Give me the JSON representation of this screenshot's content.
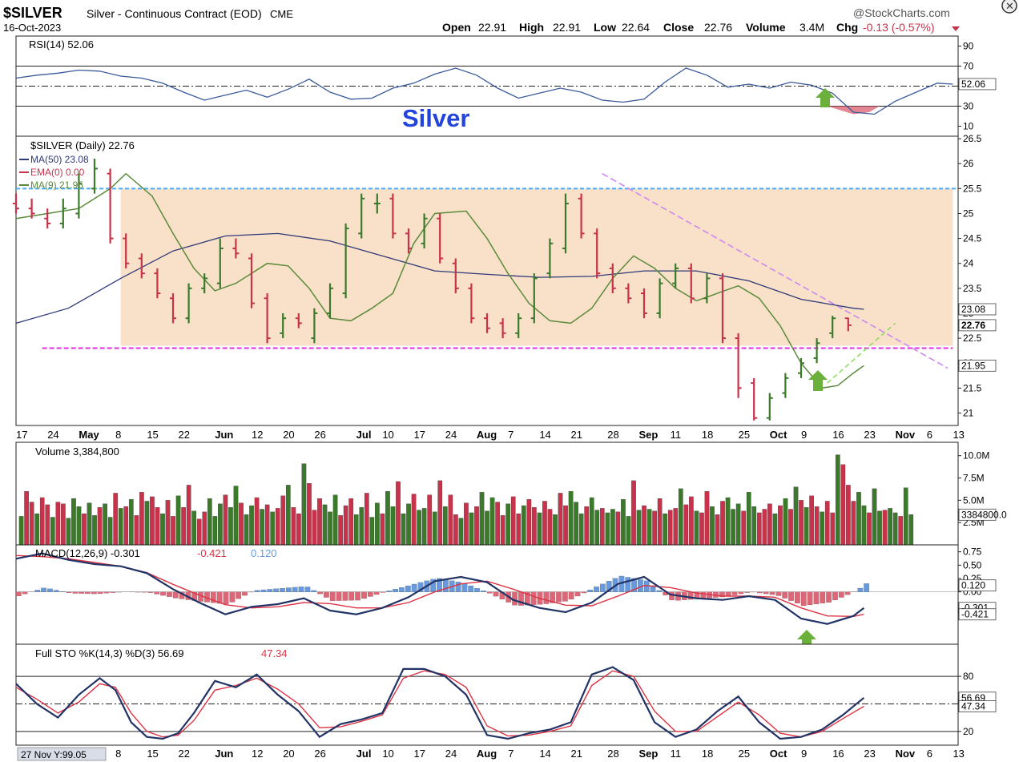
{
  "header": {
    "symbol": "$SILVER",
    "description": "Silver - Continuous Contract (EOD)",
    "exchange": "CME",
    "date": "16-Oct-2023",
    "brand": "@StockCharts.com",
    "ohlc": {
      "open_label": "Open",
      "open": "22.91",
      "high_label": "High",
      "high": "22.91",
      "low_label": "Low",
      "low": "22.64",
      "close_label": "Close",
      "close": "22.76",
      "volume_label": "Volume",
      "volume": "3.4M",
      "chg_label": "Chg",
      "chg": "-0.13 (-0.57%)"
    }
  },
  "annotation": {
    "text": "Silver",
    "color": "#2244dd"
  },
  "colors": {
    "up": "#3a7a2a",
    "down": "#c8324a",
    "ma50": "#303a78",
    "ma9": "#5a8a3a",
    "rsi_line": "#3a5a9a",
    "macd": "#223366",
    "signal": "#dd3344",
    "hist_pos": "#6699dd",
    "hist_neg": "#dd6677",
    "band": "#f8dcc0",
    "magenta": "#dd33dd",
    "resistance": "#55aaee",
    "trend": "#cc88ee",
    "green_trend": "#88dd55",
    "arrow": "#6ab03a",
    "frame": "#b8c8e0"
  },
  "chart_data": {
    "type": "line",
    "x_axis": {
      "ticks": [
        "17",
        "24",
        "May",
        "8",
        "15",
        "22",
        "Jun",
        "12",
        "20",
        "26",
        "Jul",
        "10",
        "17",
        "24",
        "Aug",
        "7",
        "14",
        "21",
        "28",
        "Sep",
        "11",
        "18",
        "25",
        "Oct",
        "9",
        "16",
        "23",
        "Nov",
        "6",
        "13"
      ],
      "bottom_ticks": [
        "8",
        "15",
        "22",
        "Jun",
        "12",
        "20",
        "26",
        "Jul",
        "10",
        "17",
        "24",
        "Aug",
        "7",
        "14",
        "21",
        "28",
        "Sep",
        "11",
        "18",
        "25",
        "Oct",
        "9",
        "16",
        "23",
        "Nov",
        "6",
        "13"
      ],
      "bottom_readout": "27 Nov Y:99.05"
    },
    "rsi": {
      "label": "RSI(14) 52.06",
      "ticks": [
        90,
        70,
        50,
        30,
        10
      ],
      "value_box": "52.06",
      "levels": [
        70,
        30
      ],
      "x": [
        0,
        4,
        8,
        12,
        16,
        20,
        24,
        28,
        32,
        36,
        40,
        44,
        48,
        52,
        56,
        60,
        64,
        68,
        72,
        76,
        80,
        84,
        88,
        92,
        96,
        100,
        104,
        108,
        112,
        116,
        120,
        124,
        128,
        132,
        136,
        140,
        144,
        148,
        152,
        156,
        160,
        164,
        168,
        172,
        176,
        179
      ],
      "values": [
        58,
        61,
        63,
        66,
        65,
        60,
        58,
        53,
        44,
        36,
        41,
        46,
        39,
        47,
        57,
        44,
        37,
        38,
        48,
        53,
        62,
        68,
        61,
        48,
        38,
        43,
        48,
        44,
        36,
        34,
        37,
        54,
        68,
        61,
        49,
        52,
        48,
        54,
        51,
        43,
        24,
        22,
        35,
        44,
        53,
        52
      ]
    },
    "price": {
      "label": "$SILVER (Daily) 22.76",
      "ylim": [
        20.75,
        26.55
      ],
      "ticks": [
        26.5,
        26.0,
        25.5,
        25.0,
        24.5,
        24.0,
        23.5,
        23.0,
        22.5,
        22.0,
        21.5,
        21.0
      ],
      "legend": [
        {
          "name": "MA(50) 23.08",
          "color": "#303a78"
        },
        {
          "name": "EMA(0) 0.00",
          "color": "#c8324a"
        },
        {
          "name": "MA(9) 21.95",
          "color": "#5a8a3a"
        }
      ],
      "value_boxes": [
        {
          "text": "23.08",
          "y": 23.08,
          "bold": false
        },
        {
          "text": "22.76",
          "y": 22.76,
          "bold": true
        },
        {
          "text": "21.95",
          "y": 21.95,
          "bold": false
        }
      ],
      "band": {
        "x0": 20,
        "x1": 179,
        "ylow": 22.35,
        "yhigh": 25.5
      },
      "resistance_line": 25.5,
      "support_line": {
        "x0": 5,
        "x1": 179,
        "y": 22.3
      },
      "trend_line": {
        "x0": 112,
        "y0": 25.8,
        "x1": 178,
        "y1": 21.9
      },
      "green_trend": {
        "x0": 155,
        "y0": 21.6,
        "x1": 168,
        "y1": 22.8
      },
      "bars": {
        "x": [
          0,
          3,
          6,
          9,
          12,
          15,
          18,
          21,
          24,
          27,
          30,
          33,
          36,
          39,
          42,
          45,
          48,
          51,
          54,
          57,
          60,
          63,
          66,
          69,
          72,
          75,
          78,
          81,
          84,
          87,
          90,
          93,
          96,
          99,
          102,
          105,
          108,
          111,
          114,
          117,
          120,
          123,
          126,
          129,
          132,
          135,
          138,
          141,
          144,
          147,
          150,
          153,
          156,
          159
        ],
        "open": [
          25.2,
          25.1,
          24.9,
          24.8,
          25.0,
          25.5,
          25.8,
          24.5,
          24.1,
          23.8,
          23.3,
          22.9,
          23.5,
          23.6,
          24.3,
          24.1,
          23.3,
          22.6,
          22.9,
          22.5,
          23.0,
          23.4,
          24.6,
          25.2,
          25.3,
          24.6,
          24.4,
          24.9,
          24.0,
          23.5,
          22.9,
          22.8,
          22.6,
          22.9,
          23.8,
          24.3,
          25.3,
          24.6,
          23.9,
          23.5,
          23.4,
          23.0,
          23.6,
          23.9,
          23.3,
          23.7,
          22.5,
          21.6,
          20.9,
          21.4,
          21.8,
          22.1,
          22.6,
          22.9
        ],
        "close": [
          25.1,
          25.0,
          24.8,
          25.1,
          25.6,
          25.9,
          24.5,
          24.0,
          23.8,
          23.4,
          22.9,
          23.5,
          23.7,
          24.3,
          24.2,
          23.2,
          22.5,
          22.9,
          22.8,
          23.0,
          23.5,
          24.7,
          25.3,
          25.2,
          24.6,
          24.3,
          24.9,
          24.1,
          23.5,
          22.9,
          22.7,
          22.6,
          22.9,
          23.7,
          24.4,
          25.2,
          24.6,
          23.8,
          23.5,
          23.3,
          23.0,
          23.6,
          23.9,
          23.3,
          23.7,
          22.5,
          21.5,
          20.9,
          21.3,
          21.7,
          22.0,
          22.4,
          22.9,
          22.76
        ],
        "high": [
          25.4,
          25.3,
          25.1,
          25.3,
          25.8,
          26.1,
          25.9,
          24.6,
          24.2,
          23.9,
          23.4,
          23.6,
          23.8,
          24.5,
          24.5,
          24.2,
          23.4,
          23.0,
          23.0,
          23.1,
          23.6,
          24.8,
          25.4,
          25.4,
          25.4,
          24.7,
          25.0,
          25.0,
          24.1,
          23.6,
          23.0,
          22.9,
          23.0,
          23.8,
          24.5,
          25.4,
          25.4,
          24.7,
          24.0,
          23.6,
          23.5,
          23.7,
          24.0,
          24.0,
          23.8,
          23.8,
          22.6,
          21.7,
          21.4,
          21.8,
          22.1,
          22.5,
          22.95,
          22.91
        ],
        "low": [
          25.0,
          24.9,
          24.7,
          24.7,
          24.9,
          25.4,
          24.4,
          23.9,
          23.7,
          23.3,
          22.8,
          22.8,
          23.4,
          23.5,
          24.1,
          23.1,
          22.4,
          22.5,
          22.7,
          22.4,
          22.9,
          23.3,
          24.5,
          25.0,
          24.5,
          24.2,
          24.3,
          24.0,
          23.4,
          22.8,
          22.6,
          22.5,
          22.5,
          22.8,
          23.7,
          24.2,
          24.5,
          23.7,
          23.4,
          23.2,
          22.9,
          22.9,
          23.5,
          23.2,
          23.2,
          22.4,
          21.3,
          20.85,
          20.85,
          21.3,
          21.7,
          22.0,
          22.5,
          22.64
        ]
      },
      "ma50": {
        "x": [
          0,
          10,
          20,
          30,
          40,
          50,
          60,
          70,
          80,
          90,
          100,
          110,
          120,
          130,
          140,
          150,
          160,
          162
        ],
        "values": [
          22.8,
          23.1,
          23.7,
          24.25,
          24.55,
          24.6,
          24.45,
          24.15,
          23.85,
          23.78,
          23.72,
          23.74,
          23.85,
          23.85,
          23.65,
          23.28,
          23.1,
          23.08
        ]
      },
      "ma9": {
        "x": [
          0,
          6,
          12,
          18,
          21,
          26,
          30,
          34,
          38,
          42,
          48,
          52,
          56,
          60,
          64,
          68,
          72,
          76,
          80,
          86,
          90,
          94,
          98,
          102,
          106,
          110,
          114,
          118,
          122,
          126,
          130,
          134,
          138,
          142,
          146,
          150,
          154,
          157,
          160,
          162
        ],
        "values": [
          24.9,
          25.0,
          25.1,
          25.5,
          25.8,
          25.35,
          24.6,
          23.9,
          23.45,
          23.6,
          24.0,
          23.95,
          23.5,
          22.9,
          22.85,
          23.1,
          23.4,
          24.4,
          25.0,
          25.05,
          24.5,
          23.8,
          23.2,
          22.85,
          22.8,
          23.1,
          23.7,
          24.15,
          23.9,
          23.5,
          23.25,
          23.4,
          23.55,
          23.3,
          22.75,
          22.0,
          21.5,
          21.55,
          21.8,
          21.95
        ]
      }
    },
    "volume": {
      "label": "Volume 3,384,800",
      "ylim": [
        0,
        11500000
      ],
      "ticks_labels": [
        "10.0M",
        "7.5M",
        "5.0M",
        "2.5M"
      ],
      "tick_values": [
        10000000,
        7500000,
        5000000,
        2500000
      ],
      "value_box": "3384800.0",
      "value": 3384800,
      "values": [
        3.2,
        6.0,
        4.8,
        3.5,
        5.3,
        4.5,
        3.1,
        4.8,
        4.6,
        3.0,
        5.2,
        4.3,
        3.5,
        4.7,
        3.3,
        4.2,
        4.6,
        3.1,
        5.8,
        4.1,
        4.3,
        5.1,
        3.3,
        5.9,
        4.9,
        5.4,
        4.2,
        3.5,
        5.0,
        3.2,
        5.5,
        4.2,
        6.7,
        3.8,
        2.9,
        3.7,
        5.2,
        3.2,
        4.6,
        5.6,
        4.2,
        6.6,
        4.7,
        3.4,
        4.4,
        5.3,
        4.0,
        4.5,
        3.7,
        4.1,
        5.5,
        6.7,
        4.2,
        3.5,
        9.1,
        6.9,
        3.9,
        5.2,
        4.5,
        3.7,
        5.6,
        3.3,
        4.4,
        5.2,
        3.4,
        4.2,
        5.8,
        3.1,
        4.7,
        3.5,
        6.0,
        4.3,
        7.1,
        3.5,
        4.6,
        5.7,
        3.9,
        4.1,
        5.6,
        3.7,
        7.2,
        4.3,
        5.6,
        3.4,
        3.0,
        4.7,
        3.6,
        4.3,
        5.9,
        3.8,
        5.3,
        4.8,
        3.3,
        4.6,
        5.4,
        3.5,
        4.4,
        5.1,
        4.2,
        3.6,
        4.9,
        4.0,
        3.4,
        5.8,
        4.4,
        6.0,
        4.8,
        3.5,
        4.3,
        5.3,
        3.9,
        4.1,
        3.6,
        4.0,
        3.7,
        5.1,
        3.2,
        7.2,
        3.9,
        4.4,
        4.0,
        3.8,
        5.2,
        3.5,
        3.9,
        4.1,
        6.3,
        4.5,
        5.4,
        3.8,
        3.6,
        6.0,
        4.3,
        3.4,
        4.9,
        5.3,
        4.0,
        4.6,
        3.8,
        5.9,
        4.3,
        3.6,
        4.0,
        4.6,
        3.5,
        4.4,
        5.2,
        4.0,
        6.5,
        5.0,
        4.2,
        5.5,
        4.3,
        3.7,
        4.9,
        3.6,
        10.1,
        9.0,
        6.7,
        4.9,
        5.9,
        4.4,
        3.6,
        6.3,
        3.8,
        3.9,
        4.1,
        3.6,
        3.2,
        6.4,
        3.4
      ]
    },
    "macd": {
      "label_main": "MACD(12,26,9) -0.301",
      "label_signal": "-0.421",
      "label_hist": "0.120",
      "ylim": [
        -0.98,
        0.88
      ],
      "tick_labels": [
        "0.75",
        "0.50",
        "0.25",
        "0.00"
      ],
      "tick_values": [
        0.75,
        0.5,
        0.25,
        0.0
      ],
      "value_boxes": [
        {
          "text": "0.120",
          "y": 0.12,
          "kind": "hist"
        },
        {
          "text": "-0.301",
          "y": -0.301,
          "kind": "macd"
        },
        {
          "text": "-0.421",
          "y": -0.421,
          "kind": "signal"
        }
      ],
      "x": [
        0,
        5,
        10,
        15,
        20,
        25,
        30,
        35,
        40,
        45,
        50,
        55,
        60,
        65,
        70,
        75,
        80,
        85,
        90,
        95,
        100,
        105,
        110,
        115,
        120,
        125,
        130,
        135,
        140,
        145,
        150,
        155,
        160,
        162
      ],
      "macd": [
        0.62,
        0.72,
        0.6,
        0.52,
        0.48,
        0.35,
        0.05,
        -0.2,
        -0.42,
        -0.28,
        -0.23,
        -0.12,
        -0.35,
        -0.42,
        -0.3,
        -0.1,
        0.2,
        0.28,
        0.18,
        -0.15,
        -0.3,
        -0.38,
        -0.2,
        0.15,
        0.28,
        -0.05,
        -0.12,
        -0.15,
        -0.08,
        -0.15,
        -0.5,
        -0.6,
        -0.45,
        -0.301
      ],
      "signal": [
        0.68,
        0.66,
        0.62,
        0.55,
        0.48,
        0.36,
        0.14,
        -0.06,
        -0.24,
        -0.3,
        -0.28,
        -0.2,
        -0.22,
        -0.3,
        -0.3,
        -0.2,
        0.0,
        0.15,
        0.2,
        0.05,
        -0.12,
        -0.25,
        -0.26,
        -0.08,
        0.12,
        0.08,
        -0.02,
        -0.08,
        -0.08,
        -0.1,
        -0.3,
        -0.45,
        -0.46,
        -0.421
      ]
    },
    "stoch": {
      "label_k": "Full STO %K(14,3) %D(3) 56.69",
      "label_d": "47.34",
      "ylim": [
        5,
        115
      ],
      "tick_labels": [
        "80",
        "20"
      ],
      "tick_values": [
        80,
        20
      ],
      "levels": [
        80,
        50,
        20
      ],
      "value_boxes": [
        {
          "text": "56.69",
          "y": 56.69
        },
        {
          "text": "47.34",
          "y": 47.34
        }
      ],
      "x": [
        0,
        4,
        8,
        12,
        16,
        19,
        22,
        25,
        28,
        31,
        34,
        38,
        42,
        46,
        50,
        54,
        58,
        62,
        66,
        70,
        74,
        78,
        82,
        86,
        90,
        94,
        98,
        102,
        106,
        110,
        114,
        118,
        122,
        126,
        130,
        134,
        138,
        142,
        146,
        150,
        154,
        158,
        162
      ],
      "k": [
        72,
        50,
        35,
        60,
        78,
        65,
        30,
        14,
        12,
        18,
        40,
        75,
        68,
        82,
        60,
        42,
        14,
        28,
        33,
        40,
        88,
        88,
        80,
        60,
        16,
        12,
        18,
        22,
        30,
        82,
        90,
        76,
        30,
        14,
        22,
        42,
        58,
        30,
        12,
        14,
        22,
        38,
        56.69
      ],
      "d": [
        68,
        55,
        40,
        52,
        72,
        68,
        40,
        20,
        14,
        16,
        32,
        65,
        70,
        78,
        66,
        50,
        24,
        25,
        31,
        38,
        78,
        86,
        82,
        68,
        26,
        15,
        16,
        20,
        26,
        70,
        86,
        80,
        42,
        20,
        20,
        36,
        52,
        38,
        18,
        14,
        20,
        34,
        47.34
      ]
    }
  }
}
